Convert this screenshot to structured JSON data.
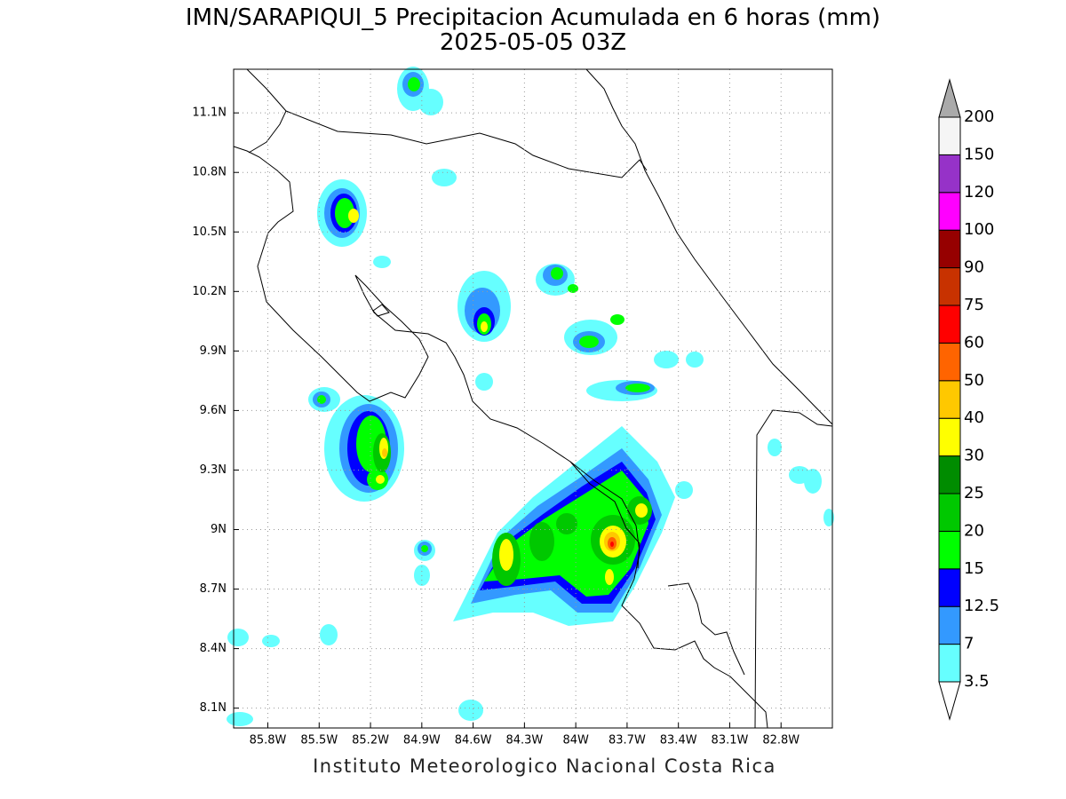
{
  "header": {
    "title": "IMN/SARAPIQUI_5 Precipitacion Acumulada en 6 horas (mm)",
    "subtitle": "2025-05-05 03Z"
  },
  "map": {
    "lon_range": [
      -86.0,
      -82.5
    ],
    "lat_range": [
      8.0,
      11.32
    ],
    "lon_ticks": [
      {
        "value": -85.8,
        "label": "85.8W"
      },
      {
        "value": -85.5,
        "label": "85.5W"
      },
      {
        "value": -85.2,
        "label": "85.2W"
      },
      {
        "value": -84.9,
        "label": "84.9W"
      },
      {
        "value": -84.6,
        "label": "84.6W"
      },
      {
        "value": -84.3,
        "label": "84.3W"
      },
      {
        "value": -84.0,
        "label": "84W"
      },
      {
        "value": -83.7,
        "label": "83.7W"
      },
      {
        "value": -83.4,
        "label": "83.4W"
      },
      {
        "value": -83.1,
        "label": "83.1W"
      },
      {
        "value": -82.8,
        "label": "82.8W"
      }
    ],
    "lat_ticks": [
      {
        "value": 11.1,
        "label": "11.1N"
      },
      {
        "value": 10.8,
        "label": "10.8N"
      },
      {
        "value": 10.5,
        "label": "10.5N"
      },
      {
        "value": 10.2,
        "label": "10.2N"
      },
      {
        "value": 9.9,
        "label": "9.9N"
      },
      {
        "value": 9.6,
        "label": "9.6N"
      },
      {
        "value": 9.3,
        "label": "9.3N"
      },
      {
        "value": 9.0,
        "label": "9N"
      },
      {
        "value": 8.7,
        "label": "8.7N"
      },
      {
        "value": 8.4,
        "label": "8.4N"
      },
      {
        "value": 8.1,
        "label": "8.1N"
      }
    ],
    "grid": true
  },
  "colorbar": {
    "levels": [
      3.5,
      7,
      12.5,
      15,
      20,
      25,
      30,
      40,
      50,
      60,
      75,
      90,
      100,
      120,
      150,
      200
    ],
    "colors": [
      "#66ffff",
      "#3399ff",
      "#0000ff",
      "#00ff00",
      "#00c800",
      "#008c00",
      "#ffff00",
      "#ffc800",
      "#ff6400",
      "#ff0000",
      "#c83200",
      "#960000",
      "#ff00ff",
      "#9632c8",
      "#f5f5f5"
    ],
    "under_color": "#ffffff",
    "over_color": "#aaaaaa"
  },
  "footer": "Instituto Meteorologico Nacional Costa Rica"
}
